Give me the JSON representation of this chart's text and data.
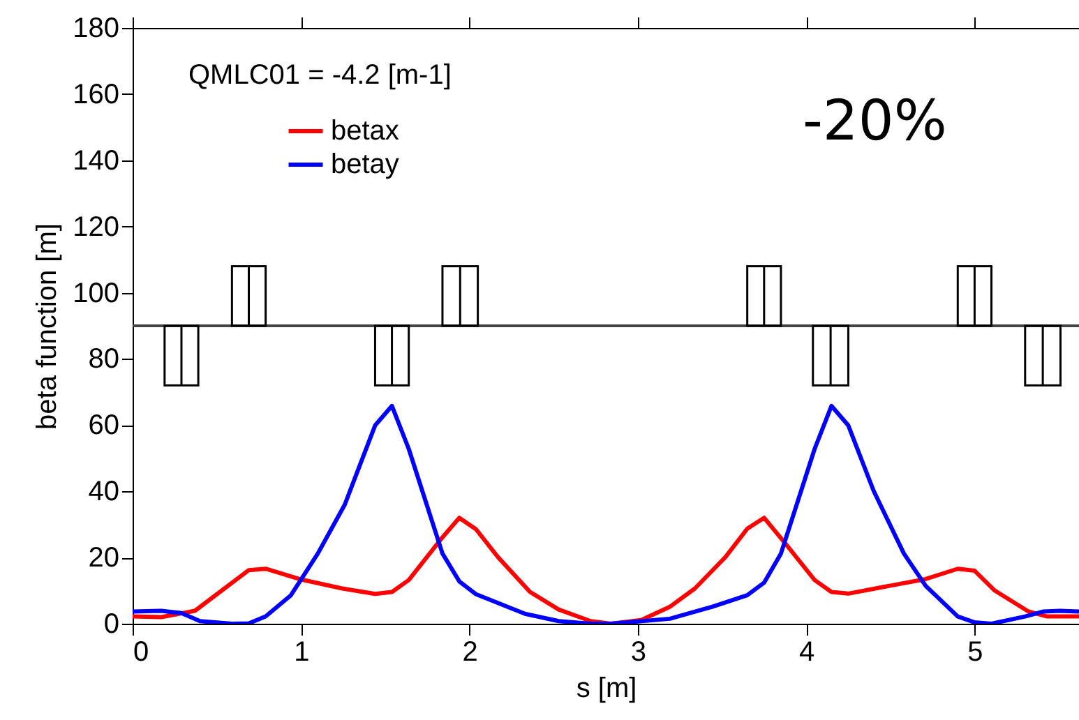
{
  "chart_data": {
    "type": "line",
    "xlabel": "s [m]",
    "ylabel": "beta function [m]",
    "annotations": [
      "QMLC01 = -4.2 [m-1]",
      "-20%"
    ],
    "series": [
      {
        "name": "betax",
        "color": "#ff0000",
        "x": [
          0,
          0.17,
          0.37,
          0.69,
          0.79,
          0.99,
          1.24,
          1.44,
          1.54,
          1.64,
          1.84,
          1.94,
          2.04,
          2.17,
          2.36,
          2.53,
          2.72,
          2.84,
          3.02,
          3.19,
          3.34,
          3.52,
          3.65,
          3.75,
          3.88,
          4.05,
          4.15,
          4.25,
          4.49,
          4.71,
          4.9,
          5.0,
          5.12,
          5.32,
          5.43,
          5.62
        ],
        "values": [
          2.2,
          2.0,
          3.9,
          16.2,
          16.6,
          13.5,
          10.7,
          9.0,
          9.6,
          13.2,
          26.1,
          32,
          28.5,
          20.1,
          9.6,
          4.3,
          0.8,
          0,
          1.1,
          5.1,
          10.7,
          20.1,
          28.7,
          32,
          24,
          13.2,
          9.6,
          9.1,
          11.4,
          13.5,
          16.6,
          16.0,
          10,
          3.7,
          2.2,
          2.2
        ]
      },
      {
        "name": "betay",
        "color": "#0000ff",
        "x": [
          0,
          0.17,
          0.29,
          0.4,
          0.59,
          0.69,
          0.79,
          0.94,
          1.1,
          1.26,
          1.44,
          1.54,
          1.64,
          1.84,
          1.94,
          2.04,
          2.33,
          2.53,
          2.72,
          2.84,
          3.19,
          3.44,
          3.65,
          3.75,
          3.85,
          4.05,
          4.15,
          4.25,
          4.4,
          4.58,
          4.71,
          4.9,
          5.0,
          5.1,
          5.3,
          5.41,
          5.51,
          5.62
        ],
        "values": [
          3.7,
          3.9,
          3.2,
          0.8,
          0,
          0.1,
          2.2,
          8.6,
          21.2,
          36,
          59.9,
          65.8,
          52.8,
          21.2,
          12.8,
          8.9,
          3.0,
          0.8,
          0,
          0,
          1.5,
          5.1,
          8.6,
          12.4,
          21.2,
          52.8,
          65.8,
          59.9,
          40.2,
          21.2,
          11.4,
          2.2,
          0.4,
          0,
          2.2,
          3.7,
          3.9,
          3.7
        ]
      }
    ],
    "xlim": [
      0,
      5.62
    ],
    "xticks": [
      0,
      1,
      2,
      3,
      4,
      5
    ],
    "ylim": [
      0,
      180
    ],
    "yticks": [
      0,
      20,
      40,
      60,
      80,
      100,
      120,
      140,
      160,
      180
    ],
    "ref_lines": [
      {
        "axis": "y",
        "value": 90
      }
    ],
    "legend": "top left",
    "grid": false,
    "marker": "none",
    "line_style": "solid"
  }
}
